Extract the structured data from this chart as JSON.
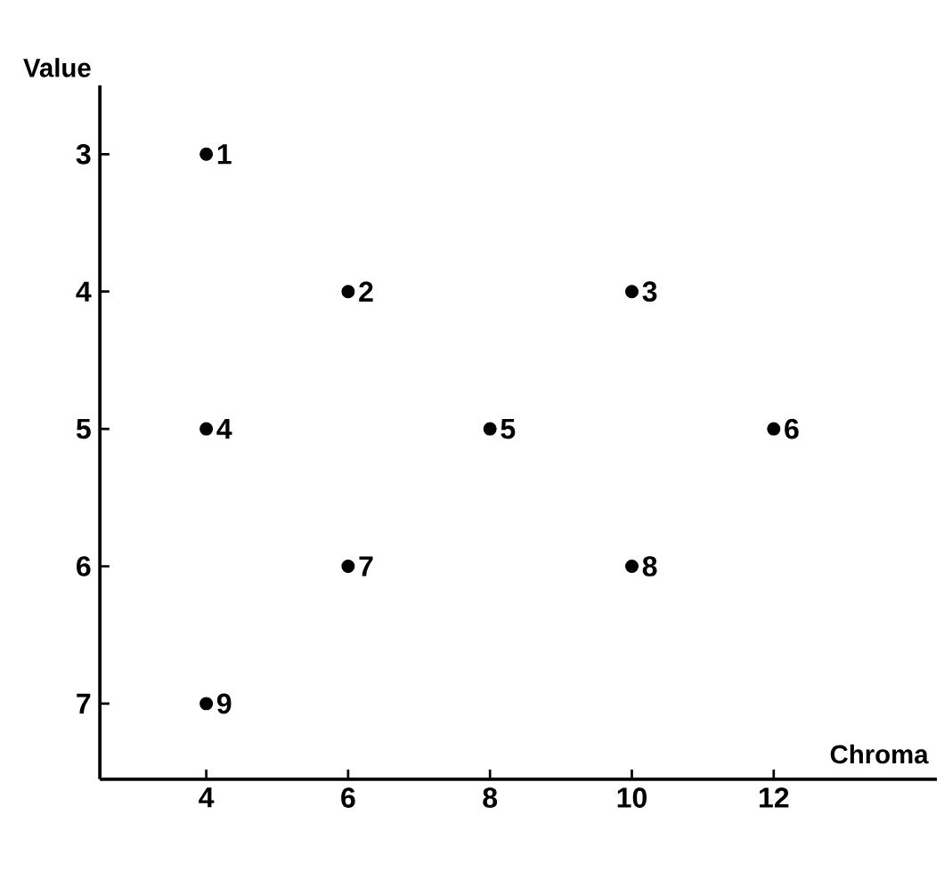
{
  "chart_data": {
    "type": "scatter",
    "xlabel": "Chroma",
    "ylabel": "Value",
    "x": [
      4,
      6,
      10,
      4,
      8,
      12,
      6,
      10,
      4
    ],
    "series": [
      {
        "color": "#000000",
        "values": [
          3,
          4,
          4,
          5,
          5,
          5,
          6,
          6,
          7
        ]
      }
    ],
    "marker": "circle",
    "grid": false,
    "xlim": [
      2.5,
      14.3
    ],
    "ylim": [
      7.55,
      2.5
    ],
    "xticks": [
      4,
      6,
      8,
      10,
      12
    ],
    "yticks": [
      3,
      4,
      5,
      6,
      7
    ],
    "annotations": [
      {
        "text": "1",
        "x": 4,
        "y": 3
      },
      {
        "text": "2",
        "x": 6,
        "y": 4
      },
      {
        "text": "3",
        "x": 10,
        "y": 4
      },
      {
        "text": "4",
        "x": 4,
        "y": 5
      },
      {
        "text": "5",
        "x": 8,
        "y": 5
      },
      {
        "text": "6",
        "x": 12,
        "y": 5
      },
      {
        "text": "7",
        "x": 6,
        "y": 6
      },
      {
        "text": "8",
        "x": 10,
        "y": 6
      },
      {
        "text": "9",
        "x": 4,
        "y": 7
      }
    ]
  }
}
